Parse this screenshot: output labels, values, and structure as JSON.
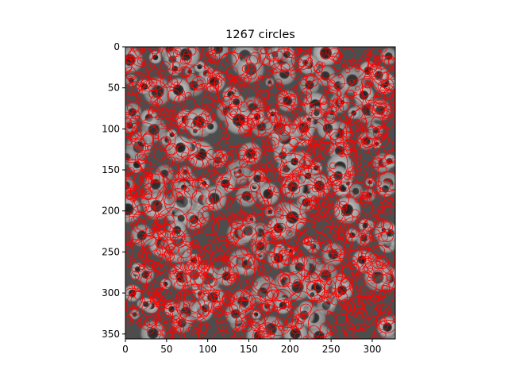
{
  "chart_data": {
    "type": "image",
    "title": "1267 circles",
    "xlabel": "",
    "ylabel": "",
    "x_ticks": [
      "0",
      "50",
      "100",
      "150",
      "200",
      "250",
      "300"
    ],
    "y_ticks": [
      "0",
      "50",
      "100",
      "150",
      "200",
      "250",
      "300",
      "350"
    ],
    "x_range": [
      0,
      328
    ],
    "y_range": [
      356,
      0
    ],
    "y_axis_inverted": true,
    "image": "grayscale photo of sunflower field",
    "overlay": {
      "shape": "circle",
      "count": 1267,
      "color": "#ff0000"
    },
    "grid": false
  }
}
